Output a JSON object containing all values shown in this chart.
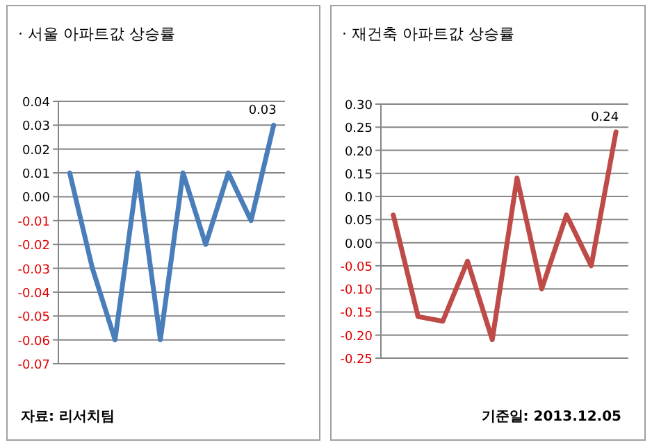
{
  "chart_data": [
    {
      "type": "line",
      "title": "· 서울 아파트값 상승률",
      "categories": [
        null,
        null,
        null,
        null,
        null,
        null,
        null,
        null,
        null,
        null
      ],
      "series": [
        {
          "color": "#4a7ebb",
          "values": [
            0.01,
            -0.03,
            -0.06,
            0.01,
            -0.06,
            0.01,
            -0.02,
            0.01,
            -0.01,
            0.03
          ],
          "value_labels": [
            null,
            null,
            null,
            null,
            null,
            null,
            null,
            null,
            null,
            "0.03"
          ]
        }
      ],
      "ylim": [
        -0.07,
        0.04
      ],
      "yticks": [
        {
          "value": 0.04,
          "label": "0.04"
        },
        {
          "value": 0.03,
          "label": "0.03"
        },
        {
          "value": 0.02,
          "label": "0.02"
        },
        {
          "value": 0.01,
          "label": "0.01"
        },
        {
          "value": 0,
          "label": "0.00"
        },
        {
          "value": -0.01,
          "label": "-0.01"
        },
        {
          "value": -0.02,
          "label": "-0.02"
        },
        {
          "value": -0.03,
          "label": "-0.03"
        },
        {
          "value": -0.04,
          "label": "-0.04"
        },
        {
          "value": -0.05,
          "label": "-0.05"
        },
        {
          "value": -0.06,
          "label": "-0.06"
        },
        {
          "value": -0.07,
          "label": "-0.07"
        }
      ],
      "grid": "y",
      "tick_labels": "y",
      "marker": "none",
      "line_style": "solid",
      "annotations": [
        "자료: 리서치팀"
      ]
    },
    {
      "type": "line",
      "title": "· 재건축 아파트값 상승률",
      "categories": [
        null,
        null,
        null,
        null,
        null,
        null,
        null,
        null,
        null,
        null
      ],
      "series": [
        {
          "color": "#be4b48",
          "values": [
            0.06,
            -0.16,
            -0.17,
            -0.04,
            -0.21,
            0.14,
            -0.1,
            0.06,
            -0.05,
            0.24
          ],
          "value_labels": [
            null,
            null,
            null,
            null,
            null,
            null,
            null,
            null,
            null,
            "0.24"
          ]
        }
      ],
      "ylim": [
        -0.25,
        0.3
      ],
      "yticks": [
        {
          "value": 0.3,
          "label": "0.30"
        },
        {
          "value": 0.25,
          "label": "0.25"
        },
        {
          "value": 0.2,
          "label": "0.20"
        },
        {
          "value": 0.15,
          "label": "0.15"
        },
        {
          "value": 0.1,
          "label": "0.10"
        },
        {
          "value": 0.05,
          "label": "0.05"
        },
        {
          "value": 0,
          "label": "0.00"
        },
        {
          "value": -0.05,
          "label": "-0.05"
        },
        {
          "value": -0.1,
          "label": "-0.10"
        },
        {
          "value": -0.15,
          "label": "-0.15"
        },
        {
          "value": -0.2,
          "label": "-0.20"
        },
        {
          "value": -0.25,
          "label": "-0.25"
        }
      ],
      "grid": "y",
      "tick_labels": "y",
      "marker": "none",
      "line_style": "solid",
      "annotations": [
        "기준일: 2013.12.05"
      ]
    }
  ]
}
